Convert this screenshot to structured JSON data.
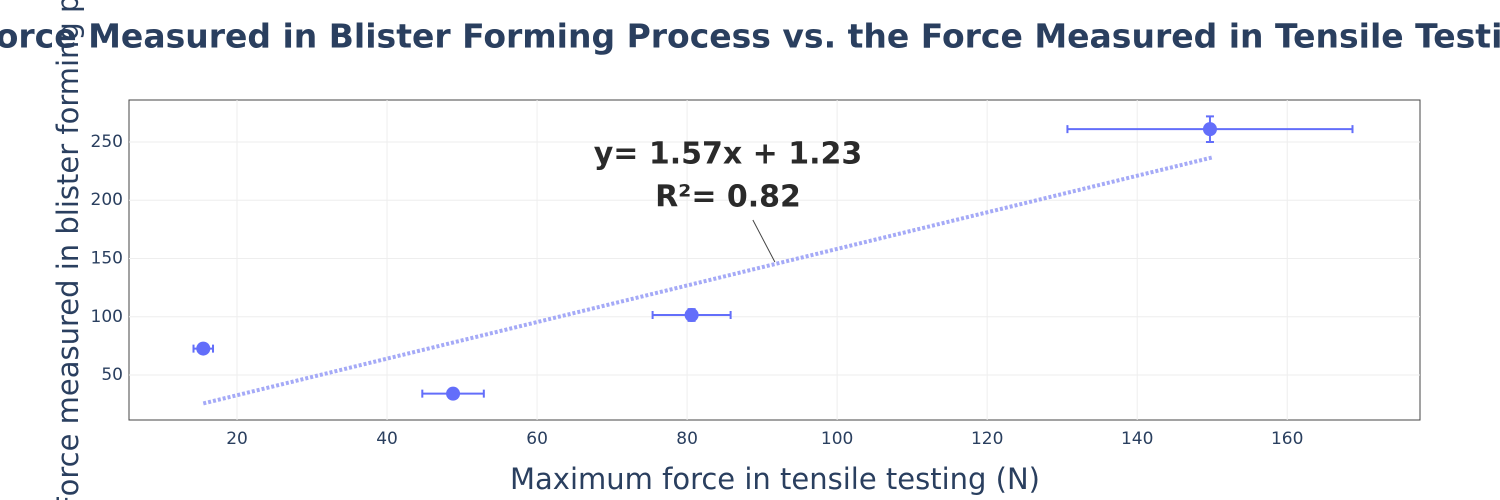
{
  "chart_data": {
    "type": "scatter",
    "title": "Force Measured in Blister Forming Process vs. the Force Measured in Tensile Testing",
    "x_label": "Maximum force in tensile testing (N)",
    "y_label": "Force measured in blister forming process (N)",
    "series": [
      {
        "color": "#636efa",
        "x": [
          15.5,
          48.8,
          80.6,
          149.7
        ],
        "values": [
          72.7,
          34,
          101.5,
          261
        ],
        "error_x": [
          1.3,
          4.1,
          5.2,
          19
        ],
        "error_y": [
          3,
          1,
          5,
          11
        ]
      }
    ],
    "trendline": {
      "color": "#a5aaf7",
      "x": [
        15.5,
        150
      ],
      "values": [
        25.6,
        236.7
      ]
    },
    "annotation": {
      "lines": [
        "y= 1.57x + 1.23",
        "R²= 0.82"
      ],
      "x": 91.7,
      "y": 147
    },
    "xlim": [
      5.6,
      177.7
    ],
    "xticks": [
      20,
      40,
      60,
      80,
      100,
      120,
      140,
      160
    ],
    "ylim": [
      11.4,
      286
    ],
    "yticks": [
      50,
      100,
      150,
      200,
      250
    ],
    "grid": true
  }
}
